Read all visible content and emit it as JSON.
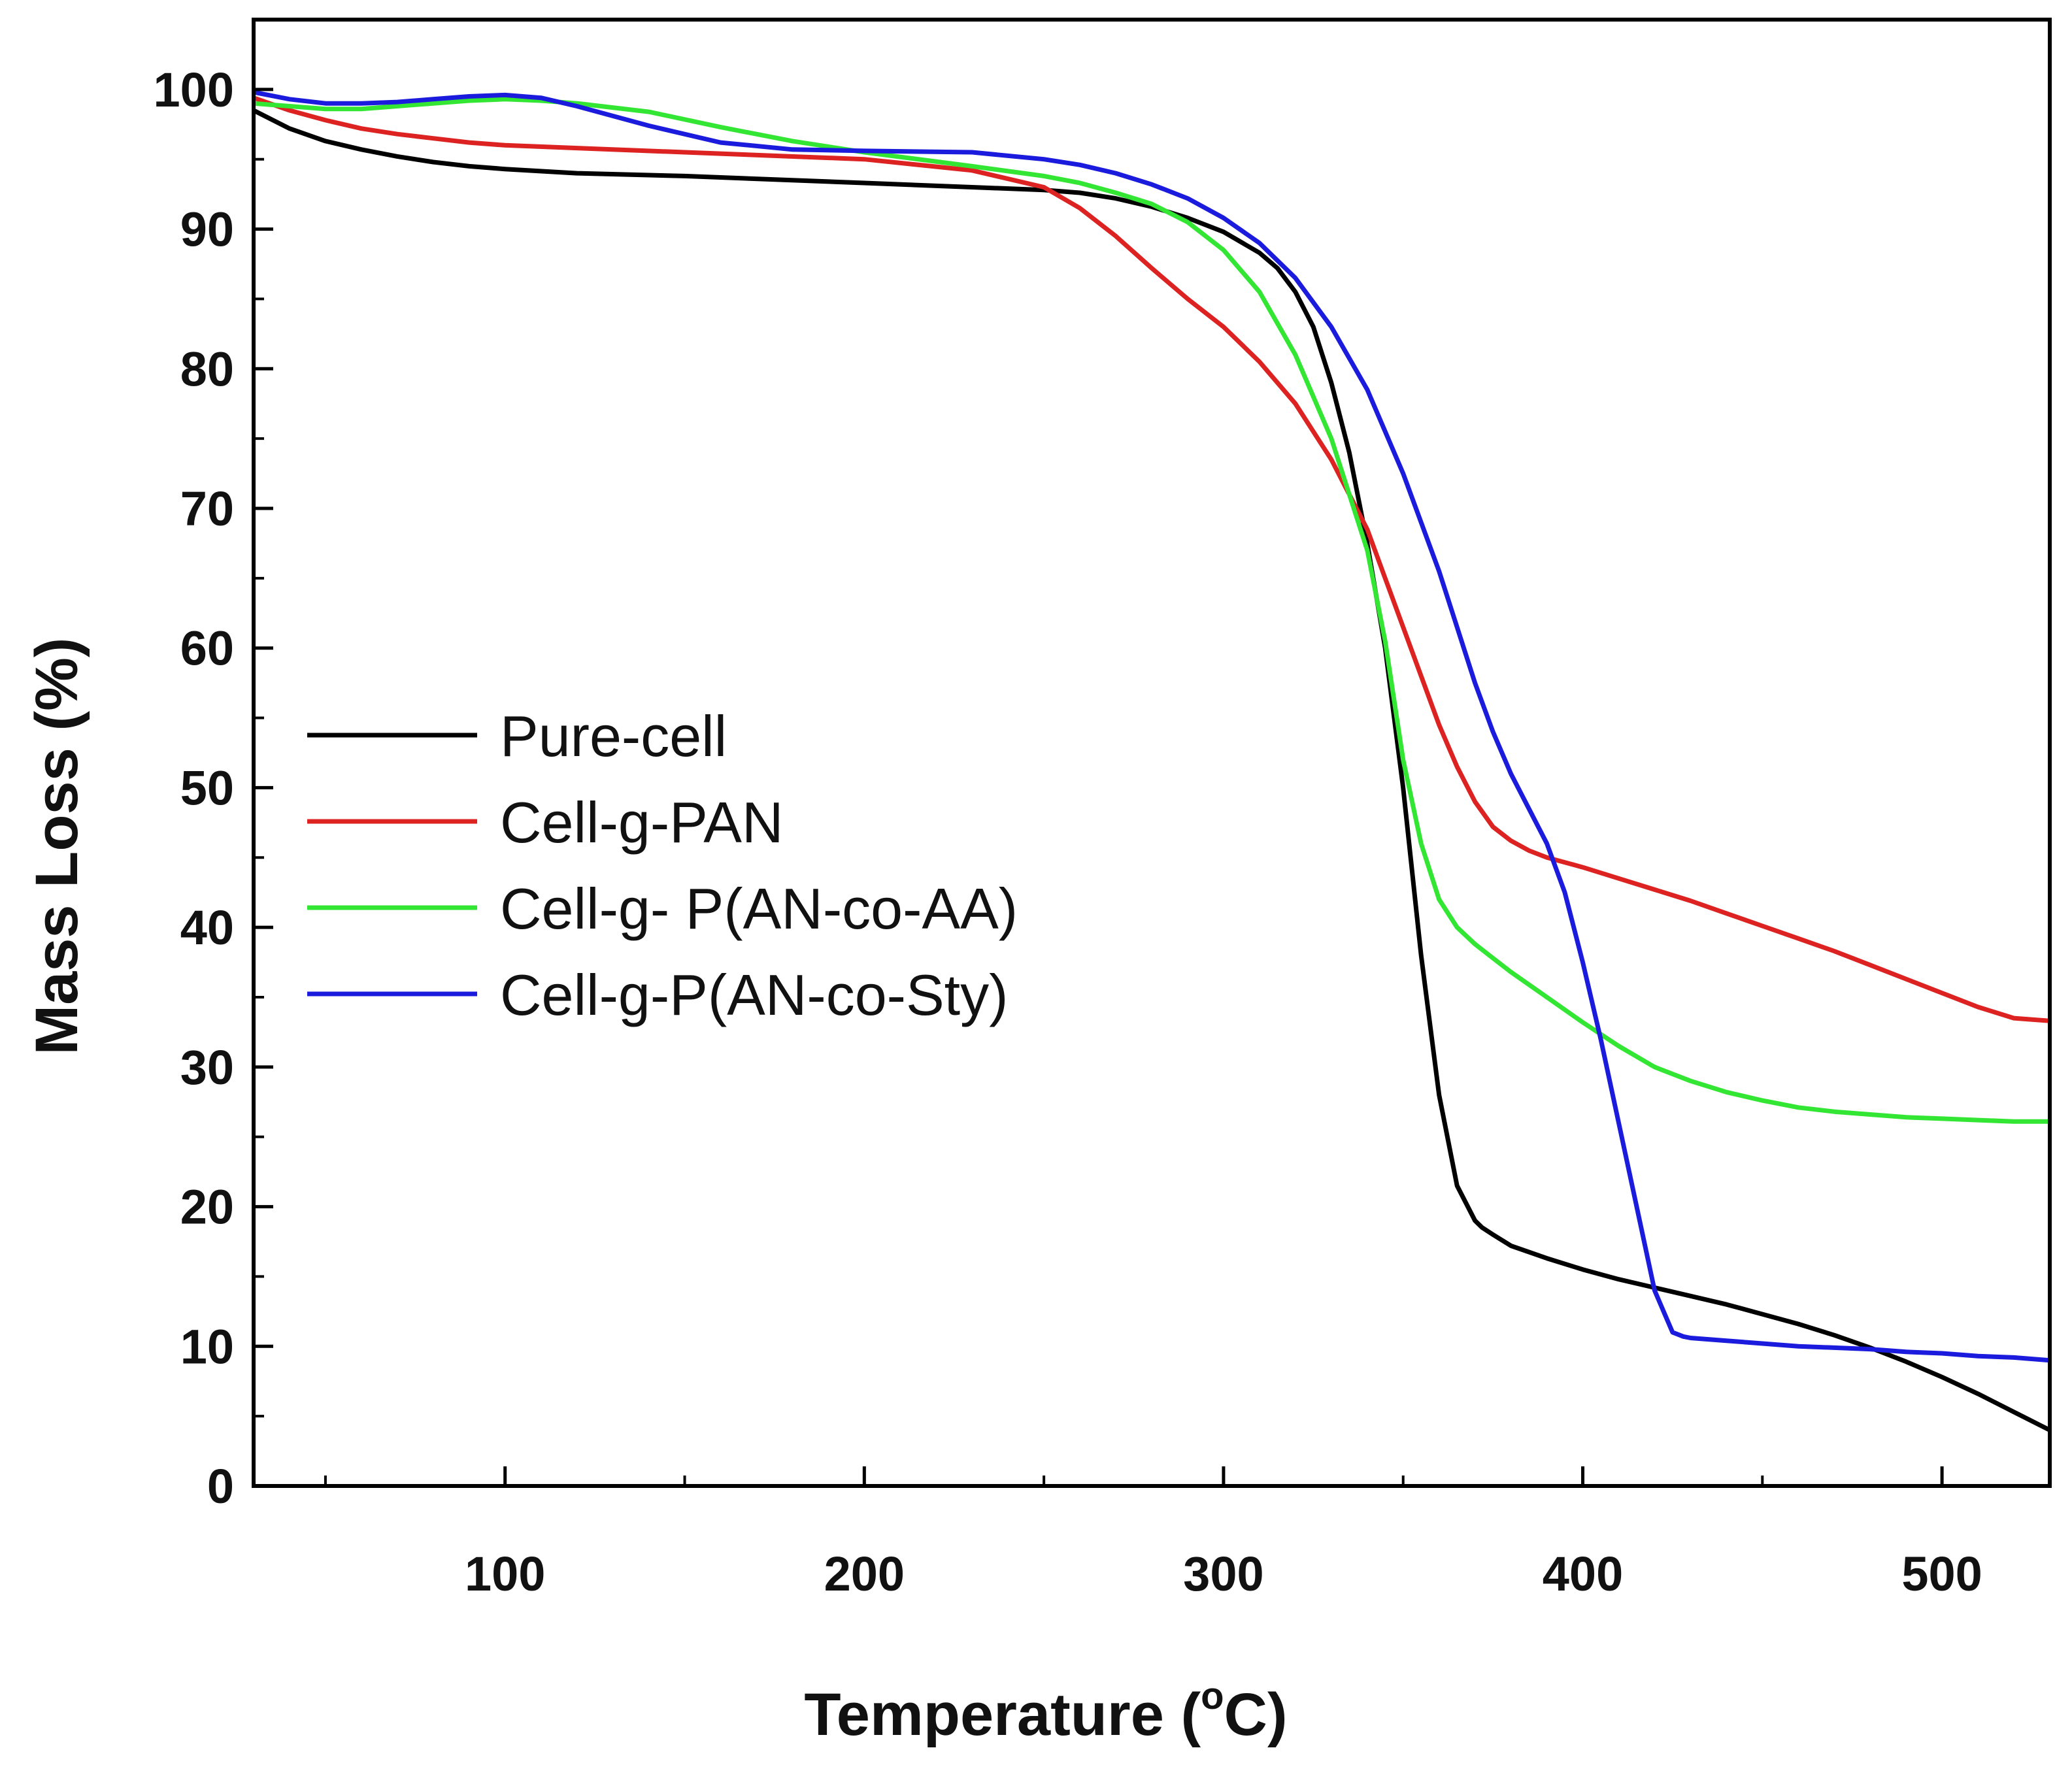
{
  "chart_data": {
    "type": "line",
    "title": "",
    "xlabel": "Temperature (°C)",
    "xlabel_text": "Temperature (",
    "xlabel_degree": "o",
    "xlabel_unit": "C)",
    "ylabel": "Mass Loss (%)",
    "xlim": [
      30,
      530
    ],
    "ylim": [
      0,
      105
    ],
    "xticks": [
      100,
      200,
      300,
      400,
      500
    ],
    "yticks": [
      0,
      10,
      20,
      30,
      40,
      50,
      60,
      70,
      80,
      90,
      100
    ],
    "grid": false,
    "legend_position": "middle-left",
    "series": [
      {
        "name": "Pure-cell",
        "color": "#000000",
        "x": [
          30,
          40,
          50,
          60,
          70,
          80,
          90,
          100,
          120,
          150,
          200,
          230,
          250,
          260,
          270,
          280,
          290,
          300,
          310,
          315,
          320,
          325,
          330,
          335,
          340,
          345,
          350,
          355,
          360,
          365,
          370,
          372,
          375,
          380,
          390,
          400,
          410,
          420,
          430,
          440,
          450,
          460,
          470,
          480,
          490,
          500,
          510,
          520,
          530
        ],
        "y": [
          98.5,
          97.2,
          96.3,
          95.7,
          95.2,
          94.8,
          94.5,
          94.3,
          94.0,
          93.8,
          93.3,
          93.0,
          92.8,
          92.6,
          92.2,
          91.6,
          90.8,
          89.8,
          88.3,
          87.2,
          85.5,
          83.0,
          79.0,
          74.0,
          67.5,
          60.0,
          50.0,
          38.0,
          28.0,
          21.5,
          19.0,
          18.5,
          18.0,
          17.2,
          16.3,
          15.5,
          14.8,
          14.2,
          13.6,
          13.0,
          12.3,
          11.6,
          10.8,
          9.9,
          8.9,
          7.8,
          6.6,
          5.3,
          4.0
        ]
      },
      {
        "name": "Cell-g-PAN",
        "color": "#dd2222",
        "x": [
          30,
          40,
          50,
          60,
          70,
          80,
          90,
          100,
          120,
          150,
          200,
          230,
          250,
          260,
          270,
          280,
          290,
          300,
          310,
          320,
          330,
          340,
          345,
          350,
          355,
          360,
          365,
          370,
          375,
          380,
          385,
          390,
          400,
          410,
          420,
          430,
          440,
          450,
          460,
          470,
          480,
          490,
          500,
          510,
          520,
          530
        ],
        "y": [
          99.4,
          98.5,
          97.8,
          97.2,
          96.8,
          96.5,
          96.2,
          96.0,
          95.8,
          95.5,
          95.0,
          94.2,
          93.0,
          91.5,
          89.5,
          87.2,
          85.0,
          83.0,
          80.5,
          77.5,
          73.5,
          68.5,
          65.0,
          61.5,
          58.0,
          54.5,
          51.5,
          49.0,
          47.2,
          46.2,
          45.5,
          45.0,
          44.3,
          43.5,
          42.7,
          41.9,
          41.0,
          40.1,
          39.2,
          38.3,
          37.3,
          36.3,
          35.3,
          34.3,
          33.5,
          33.3
        ]
      },
      {
        "name": "Cell-g- P(AN-co-AA)",
        "color": "#33e633",
        "x": [
          30,
          40,
          50,
          60,
          70,
          80,
          90,
          100,
          110,
          120,
          140,
          160,
          180,
          200,
          230,
          250,
          260,
          270,
          280,
          290,
          300,
          310,
          320,
          330,
          340,
          345,
          350,
          355,
          360,
          365,
          370,
          375,
          380,
          390,
          400,
          410,
          420,
          430,
          440,
          450,
          460,
          470,
          480,
          490,
          500,
          510,
          520,
          530
        ],
        "y": [
          99.0,
          98.8,
          98.6,
          98.6,
          98.8,
          99.0,
          99.2,
          99.3,
          99.2,
          99.0,
          98.4,
          97.3,
          96.3,
          95.5,
          94.5,
          93.8,
          93.3,
          92.6,
          91.8,
          90.5,
          88.5,
          85.5,
          81.0,
          75.0,
          67.0,
          60.5,
          52.0,
          46.0,
          42.0,
          40.0,
          38.8,
          37.8,
          36.8,
          35.0,
          33.2,
          31.5,
          30.0,
          29.0,
          28.2,
          27.6,
          27.1,
          26.8,
          26.6,
          26.4,
          26.3,
          26.2,
          26.1,
          26.1
        ]
      },
      {
        "name": "Cell-g-P(AN-co-Sty)",
        "color": "#1b1bdd",
        "x": [
          30,
          40,
          50,
          60,
          70,
          80,
          90,
          100,
          110,
          120,
          140,
          160,
          180,
          200,
          230,
          250,
          260,
          270,
          280,
          290,
          300,
          310,
          320,
          330,
          340,
          350,
          360,
          365,
          370,
          375,
          380,
          385,
          390,
          395,
          400,
          405,
          410,
          415,
          420,
          425,
          428,
          430,
          440,
          450,
          460,
          470,
          480,
          490,
          500,
          510,
          520,
          530
        ],
        "y": [
          99.8,
          99.3,
          99.0,
          99.0,
          99.1,
          99.3,
          99.5,
          99.6,
          99.4,
          98.8,
          97.4,
          96.2,
          95.7,
          95.6,
          95.5,
          95.0,
          94.6,
          94.0,
          93.2,
          92.2,
          90.8,
          89.0,
          86.5,
          83.0,
          78.5,
          72.5,
          65.5,
          61.5,
          57.5,
          54.0,
          51.0,
          48.5,
          46.0,
          42.5,
          37.5,
          32.0,
          26.0,
          20.0,
          14.0,
          11.0,
          10.7,
          10.6,
          10.4,
          10.2,
          10.0,
          9.9,
          9.8,
          9.6,
          9.5,
          9.3,
          9.2,
          9.0
        ]
      }
    ]
  }
}
